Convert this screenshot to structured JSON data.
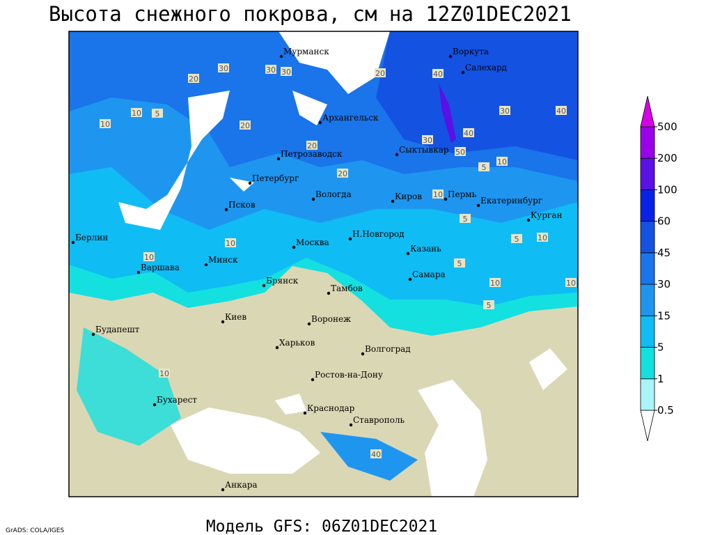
{
  "title": "Высота снежного покрова, см на 12Z01DEC2021",
  "footer": "Модель GFS: 06Z01DEC2021",
  "credit": "GrADS: COLA/IGES",
  "map": {
    "cities": [
      "Мурманск",
      "Воркута",
      "Салехард",
      "Архангельск",
      "Петрозаводск",
      "Сыктывкар",
      "Петербург",
      "Вологда",
      "Киров",
      "Пермь",
      "Екатеринбург",
      "Курган",
      "Псков",
      "Берлин",
      "Н.Новгород",
      "Москва",
      "Казань",
      "Варшава",
      "Минск",
      "Самара",
      "Брянск",
      "Тамбов",
      "Киев",
      "Воронеж",
      "Будапешт",
      "Харьков",
      "Волгоград",
      "Ростов-на-Дону",
      "Бухарест",
      "Краснодар",
      "Ставрополь",
      "Анкара"
    ],
    "contour_labels": [
      30,
      20,
      30,
      30,
      20,
      40,
      30,
      40,
      20,
      20,
      30,
      40,
      50,
      10,
      5,
      20,
      10,
      5,
      10,
      5,
      10,
      10,
      5,
      10,
      10,
      5,
      10,
      10,
      10,
      5,
      40
    ]
  },
  "colorbar": {
    "levels": [
      0.5,
      1,
      5,
      15,
      30,
      45,
      60,
      100,
      200,
      500
    ],
    "colors": [
      "#ffffff",
      "#a8f4f8",
      "#14e0e0",
      "#10bcf4",
      "#1e96f0",
      "#1a74ea",
      "#1452e2",
      "#0a22e8",
      "#5a10e6",
      "#9a00ea",
      "#d800e8"
    ]
  }
}
